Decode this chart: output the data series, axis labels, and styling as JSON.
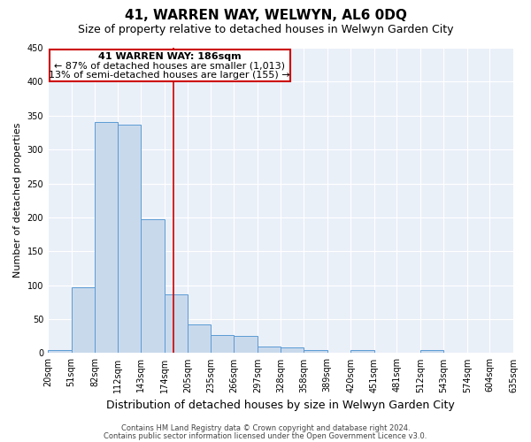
{
  "title": "41, WARREN WAY, WELWYN, AL6 0DQ",
  "subtitle": "Size of property relative to detached houses in Welwyn Garden City",
  "xlabel": "Distribution of detached houses by size in Welwyn Garden City",
  "ylabel": "Number of detached properties",
  "bin_edges": [
    20,
    51,
    82,
    112,
    143,
    174,
    205,
    235,
    266,
    297,
    328,
    358,
    389,
    420,
    451,
    481,
    512,
    543,
    574,
    604,
    635
  ],
  "bin_heights": [
    5,
    97,
    340,
    337,
    197,
    86,
    42,
    26,
    25,
    10,
    8,
    4,
    1,
    5,
    1,
    0,
    4,
    0,
    1,
    0
  ],
  "bar_color": "#c9d9ec",
  "bar_edge_color": "#5b9bd5",
  "vline_x": 186,
  "vline_color": "#cc0000",
  "ylim": [
    0,
    450
  ],
  "yticks": [
    0,
    50,
    100,
    150,
    200,
    250,
    300,
    350,
    400,
    450
  ],
  "background_color": "#eaf0f8",
  "grid_color": "#ffffff",
  "annotation_title": "41 WARREN WAY: 186sqm",
  "annotation_line1": "← 87% of detached houses are smaller (1,013)",
  "annotation_line2": "13% of semi-detached houses are larger (155) →",
  "annotation_box_color": "#cc0000",
  "fig_background": "#ffffff",
  "footer_line1": "Contains HM Land Registry data © Crown copyright and database right 2024.",
  "footer_line2": "Contains public sector information licensed under the Open Government Licence v3.0.",
  "title_fontsize": 11,
  "subtitle_fontsize": 9,
  "xlabel_fontsize": 9,
  "ylabel_fontsize": 8,
  "tick_fontsize": 7,
  "footer_fontsize": 6,
  "annotation_fontsize": 8
}
